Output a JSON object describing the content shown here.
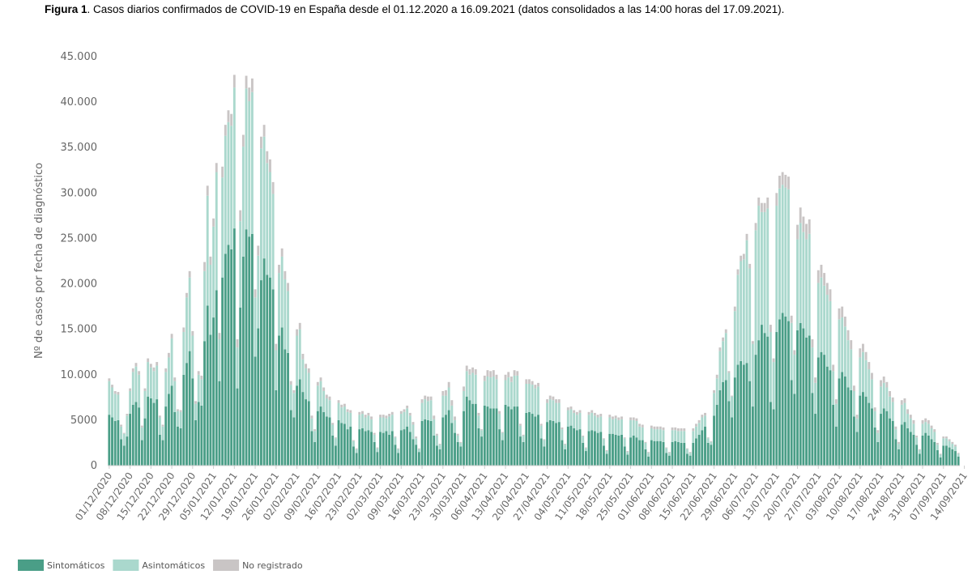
{
  "caption": {
    "prefix": "Figura 1",
    "text": ". Casos diarios confirmados de COVID-19 en España desde el 01.12.2020 a 16.09.2021 (datos consolidados a las 14:00 horas del 17.09.2021)."
  },
  "chart_data": {
    "type": "bar",
    "stacked": true,
    "title": "",
    "xlabel": "",
    "ylabel": "Nº de casos por fecha de diagnóstico",
    "ylim": [
      0,
      45000
    ],
    "yticks": [
      0,
      5000,
      10000,
      15000,
      20000,
      25000,
      30000,
      35000,
      40000,
      45000
    ],
    "ytick_labels": [
      "0",
      "5000",
      "10.000",
      "15.000",
      "20.000",
      "25.000",
      "30.000",
      "35.000",
      "40.000",
      "45.000"
    ],
    "grid": false,
    "legend_position": "bottom-left",
    "x_start": "01/12/2020",
    "x_end": "16/09/2021",
    "xtick_labels": [
      "01/12/2020",
      "08/12/2020",
      "15/12/2020",
      "22/12/2020",
      "29/12/2020",
      "05/01/2021",
      "12/01/2021",
      "19/01/2021",
      "26/01/2021",
      "02/02/2021",
      "09/02/2021",
      "16/02/2021",
      "23/02/2021",
      "02/03/2021",
      "09/03/2021",
      "16/03/2021",
      "23/03/2021",
      "30/03/2021",
      "06/04/2021",
      "13/04/2021",
      "20/04/2021",
      "27/04/2021",
      "04/05/2021",
      "11/05/2021",
      "18/05/2021",
      "25/05/2021",
      "01/06/2021",
      "08/06/2021",
      "15/06/2021",
      "22/06/2021",
      "29/06/2021",
      "06/07/2021",
      "13/07/2021",
      "20/07/2021",
      "27/07/2021",
      "03/08/2021",
      "10/08/2021",
      "17/08/2021",
      "24/08/2021",
      "31/08/2021",
      "07/09/2021",
      "14/09/2021"
    ],
    "series": [
      {
        "name": "Sintomáticos",
        "color": "#4a9e87",
        "values": [
          5600,
          5300,
          4900,
          5000,
          2900,
          2200,
          3200,
          5700,
          6700,
          7000,
          6400,
          2800,
          5200,
          7600,
          7400,
          6900,
          7300,
          3400,
          2800,
          6500,
          7900,
          8800,
          5900,
          4300,
          4100,
          10000,
          11300,
          12600,
          9600,
          5000,
          7000,
          6600,
          13700,
          17600,
          14400,
          16300,
          19300,
          9300,
          20700,
          23300,
          24300,
          23800,
          26100,
          8500,
          17400,
          23000,
          26000,
          25200,
          25500,
          12000,
          15100,
          20400,
          22800,
          21000,
          20700,
          19400,
          8300,
          14300,
          15200,
          12800,
          12400,
          6100,
          5300,
          8800,
          9500,
          8100,
          7300,
          7100,
          3800,
          2600,
          6000,
          6500,
          5900,
          5400,
          5300,
          3300,
          2200,
          5000,
          4700,
          4600,
          4000,
          4300,
          2100,
          1400,
          4000,
          4100,
          3800,
          3900,
          3700,
          2600,
          1500,
          3700,
          3600,
          3800,
          3400,
          3800,
          2300,
          1400,
          3900,
          4000,
          4300,
          3700,
          2900,
          2300,
          1500,
          4900,
          5100,
          5000,
          4900,
          3300,
          2200,
          1800,
          5300,
          5600,
          6100,
          4700,
          3600,
          2600,
          2100,
          6000,
          7600,
          7200,
          6800,
          6800,
          4100,
          3200,
          6600,
          6500,
          6300,
          6300,
          6300,
          4000,
          2800,
          6700,
          6500,
          6200,
          6500,
          6500,
          3200,
          2600,
          5800,
          5900,
          5700,
          5400,
          5600,
          3000,
          2100,
          4800,
          5000,
          4900,
          4700,
          4800,
          2800,
          1800,
          4300,
          4400,
          4100,
          3900,
          4000,
          2500,
          1600,
          3800,
          3900,
          3800,
          3600,
          3700,
          2200,
          1300,
          3500,
          3500,
          3400,
          3300,
          3400,
          2100,
          1200,
          3100,
          3300,
          3100,
          2800,
          2800,
          1800,
          1000,
          2800,
          2700,
          2700,
          2700,
          2600,
          1400,
          1100,
          2600,
          2700,
          2600,
          2500,
          2500,
          1300,
          1100,
          2500,
          3000,
          3400,
          3900,
          4300,
          2500,
          2300,
          5500,
          6700,
          8300,
          9200,
          9400,
          7100,
          5300,
          9700,
          11100,
          11500,
          11100,
          11300,
          9300,
          6500,
          12200,
          13800,
          15500,
          14600,
          14200,
          7000,
          6200,
          14700,
          16100,
          16800,
          16400,
          15900,
          9400,
          7900,
          14900,
          15700,
          15100,
          14100,
          14300,
          8000,
          5700,
          11900,
          12500,
          12200,
          10900,
          10500,
          6700,
          4300,
          9600,
          10300,
          9800,
          8600,
          8300,
          5400,
          3700,
          7700,
          8100,
          7600,
          6900,
          6300,
          4200,
          2600,
          5700,
          6300,
          6000,
          5200,
          4900,
          2900,
          1800,
          4500,
          4800,
          4100,
          3700,
          3400,
          2300,
          1300,
          3300,
          3600,
          3300,
          2900,
          2600,
          1700,
          900,
          2200,
          2200,
          2000,
          1800,
          1600,
          1000
        ]
      },
      {
        "name": "Asintomáticos",
        "color": "#aad8cd",
        "values": [
          3700,
          3300,
          3000,
          2800,
          1400,
          1300,
          2300,
          2500,
          3600,
          3900,
          3600,
          1400,
          3000,
          3800,
          3400,
          3500,
          3700,
          1900,
          1500,
          3800,
          4000,
          5200,
          3400,
          1700,
          1800,
          4700,
          7200,
          8100,
          4700,
          1800,
          3000,
          2900,
          7700,
          12100,
          7700,
          10000,
          13000,
          4600,
          11000,
          13000,
          13500,
          13600,
          15500,
          4500,
          9500,
          12100,
          15500,
          14900,
          15600,
          6500,
          8000,
          14500,
          13400,
          12300,
          11600,
          10500,
          4400,
          6900,
          7800,
          7700,
          6800,
          2800,
          2700,
          5500,
          5500,
          3600,
          3400,
          3100,
          1400,
          1200,
          2800,
          2800,
          2300,
          2000,
          1900,
          1200,
          800,
          1900,
          1700,
          1900,
          1900,
          1500,
          600,
          400,
          1600,
          1600,
          1500,
          1600,
          1400,
          800,
          400,
          1600,
          1700,
          1400,
          2000,
          1800,
          800,
          400,
          1800,
          1900,
          2000,
          1800,
          1600,
          700,
          300,
          2000,
          2200,
          2100,
          2300,
          1800,
          1100,
          500,
          2400,
          2100,
          2500,
          1900,
          1400,
          700,
          400,
          2200,
          2800,
          2800,
          3400,
          3200,
          1400,
          700,
          2700,
          3300,
          3400,
          3500,
          3200,
          1700,
          800,
          2700,
          3200,
          3000,
          3400,
          3400,
          1200,
          700,
          3200,
          3100,
          3200,
          3100,
          3100,
          1400,
          700,
          2100,
          2300,
          2300,
          2200,
          2100,
          1200,
          500,
          1800,
          1800,
          1700,
          1700,
          1800,
          700,
          300,
          1800,
          1900,
          1700,
          1700,
          1700,
          700,
          300,
          1800,
          1600,
          1800,
          1700,
          1700,
          900,
          300,
          1900,
          1700,
          1800,
          1500,
          1400,
          700,
          400,
          1300,
          1300,
          1300,
          1300,
          1300,
          500,
          300,
          1300,
          1200,
          1200,
          1300,
          1300,
          500,
          300,
          1300,
          1300,
          1300,
          1400,
          1200,
          500,
          300,
          2500,
          2900,
          4300,
          4500,
          5200,
          3100,
          2300,
          7300,
          9900,
          11000,
          11600,
          13500,
          12400,
          6900,
          13700,
          14800,
          12400,
          13300,
          14100,
          7700,
          5200,
          13900,
          14400,
          14100,
          14200,
          14500,
          6300,
          4300,
          10000,
          11000,
          10600,
          10800,
          11200,
          5000,
          3400,
          8200,
          8200,
          7600,
          7900,
          7600,
          3700,
          2500,
          6500,
          6000,
          5500,
          5200,
          4500,
          2800,
          1500,
          4200,
          4400,
          4000,
          3700,
          3200,
          1800,
          1000,
          3000,
          2800,
          2600,
          2400,
          2100,
          1100,
          600,
          2200,
          2100,
          1600,
          1500,
          1200,
          800,
          400,
          1300,
          1200,
          1300,
          1200,
          1100,
          600,
          300,
          800,
          800,
          700,
          600,
          500,
          300
        ]
      },
      {
        "name": "No registrado",
        "color": "#c9c5c5",
        "values": [
          300,
          300,
          300,
          300,
          200,
          100,
          200,
          300,
          400,
          400,
          400,
          200,
          300,
          400,
          400,
          400,
          400,
          200,
          200,
          400,
          500,
          500,
          400,
          200,
          200,
          500,
          500,
          700,
          500,
          300,
          400,
          400,
          1000,
          1100,
          900,
          900,
          1000,
          700,
          1200,
          1200,
          1300,
          1300,
          1400,
          900,
          1200,
          1300,
          1400,
          1500,
          1500,
          900,
          1100,
          1300,
          1300,
          1300,
          1400,
          1300,
          700,
          900,
          900,
          900,
          900,
          400,
          300,
          700,
          700,
          600,
          500,
          500,
          300,
          200,
          400,
          400,
          400,
          400,
          400,
          200,
          100,
          300,
          300,
          300,
          300,
          300,
          100,
          100,
          300,
          300,
          300,
          300,
          300,
          200,
          100,
          300,
          300,
          300,
          300,
          300,
          100,
          100,
          300,
          300,
          300,
          300,
          300,
          200,
          100,
          400,
          400,
          500,
          400,
          400,
          200,
          100,
          500,
          600,
          600,
          600,
          400,
          200,
          100,
          500,
          600,
          600,
          600,
          600,
          300,
          100,
          600,
          700,
          700,
          700,
          500,
          300,
          100,
          600,
          600,
          600,
          600,
          500,
          200,
          100,
          500,
          500,
          400,
          400,
          400,
          200,
          100,
          400,
          400,
          400,
          400,
          400,
          200,
          100,
          300,
          300,
          300,
          300,
          300,
          100,
          100,
          300,
          300,
          300,
          300,
          300,
          100,
          100,
          300,
          300,
          300,
          300,
          300,
          100,
          100,
          300,
          300,
          300,
          300,
          300,
          100,
          100,
          300,
          300,
          300,
          300,
          300,
          100,
          100,
          300,
          300,
          300,
          300,
          300,
          100,
          100,
          300,
          300,
          300,
          300,
          300,
          100,
          100,
          300,
          400,
          400,
          400,
          400,
          200,
          100,
          500,
          600,
          600,
          600,
          700,
          500,
          300,
          800,
          900,
          1000,
          1000,
          1200,
          800,
          400,
          1400,
          1400,
          1400,
          1400,
          1400,
          800,
          500,
          1600,
          1700,
          1700,
          1700,
          1600,
          900,
          600,
          1400,
          1400,
          1400,
          1300,
          1300,
          700,
          500,
          1200,
          1200,
          1100,
          1100,
          1000,
          600,
          400,
          1000,
          900,
          900,
          800,
          700,
          400,
          300,
          700,
          700,
          600,
          600,
          500,
          300,
          200,
          500,
          500,
          500,
          400,
          400,
          200,
          100,
          400,
          400,
          400,
          300,
          300,
          200,
          100,
          200,
          200,
          200,
          200,
          200,
          100
        ]
      }
    ]
  }
}
